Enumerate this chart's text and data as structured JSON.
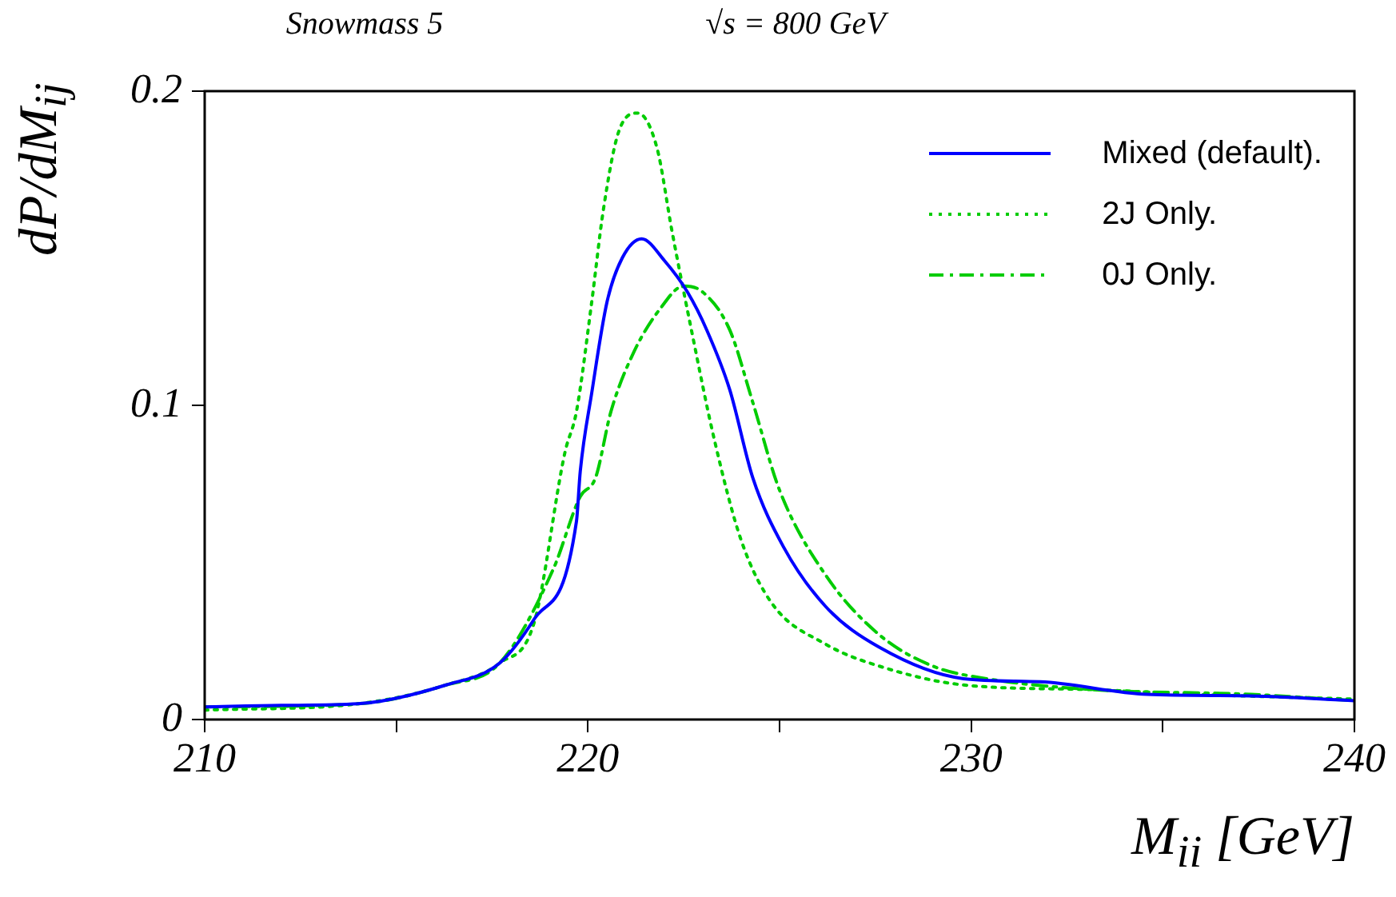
{
  "chart_data": {
    "type": "line",
    "xlabel": "M$_{ii}$ [GeV]",
    "ylabel": "dP/dM$_{ij}$",
    "annotations": [
      "Snowmass 5",
      "√s = 800 GeV"
    ],
    "xlim": [
      210,
      240
    ],
    "xticks": [
      210,
      {
        "value": 215,
        "label": null
      },
      220,
      {
        "value": 225,
        "label": null
      },
      230,
      {
        "value": 235,
        "label": null
      },
      240
    ],
    "ylim": [
      0,
      0.2
    ],
    "yticks": [
      0,
      0.1,
      0.2
    ],
    "grid": false,
    "legend": "top right",
    "marker": "none",
    "series": [
      {
        "name": "Mixed (default).",
        "color": "#0000ff",
        "line_style": "solid",
        "x": [
          210,
          212,
          214,
          216.3,
          217.7,
          218.6,
          219.7,
          219.8,
          220.1,
          220.5,
          220.9,
          221.4,
          222.0,
          222.6,
          223.1,
          223.7,
          224.3,
          225.1,
          226.2,
          227.6,
          229.8,
          231.8,
          234.6,
          237.3,
          240
        ],
        "values": [
          0.004,
          0.0045,
          0.005,
          0.011,
          0.018,
          0.032,
          0.063,
          0.079,
          0.104,
          0.133,
          0.147,
          0.153,
          0.146,
          0.136,
          0.124,
          0.105,
          0.077,
          0.055,
          0.036,
          0.023,
          0.013,
          0.012,
          0.008,
          0.0075,
          0.006
        ]
      },
      {
        "name": "2J Only.",
        "color": "#00cc00",
        "line_style": "dotted",
        "x": [
          210,
          214,
          216.3,
          217.7,
          218.6,
          219.4,
          219.7,
          220.1,
          220.4,
          220.8,
          221.3,
          221.8,
          222.2,
          222.7,
          223.3,
          224.0,
          224.8,
          226.2,
          227.6,
          229.8,
          233.2,
          235.9,
          240
        ],
        "values": [
          0.003,
          0.005,
          0.011,
          0.018,
          0.031,
          0.085,
          0.098,
          0.133,
          0.162,
          0.187,
          0.193,
          0.182,
          0.155,
          0.124,
          0.089,
          0.057,
          0.037,
          0.024,
          0.017,
          0.011,
          0.0095,
          0.008,
          0.0065
        ]
      },
      {
        "name": "0J Only.",
        "color": "#00cc00",
        "line_style": "dashed",
        "x": [
          210,
          214,
          216.3,
          217.7,
          219.1,
          219.8,
          220.2,
          220.6,
          221.2,
          221.9,
          222.5,
          223.0,
          223.7,
          224.3,
          225.0,
          226.2,
          227.6,
          229.0,
          230.4,
          233.2,
          237.3,
          240
        ],
        "values": [
          0.004,
          0.005,
          0.011,
          0.018,
          0.048,
          0.071,
          0.077,
          0.098,
          0.117,
          0.131,
          0.138,
          0.136,
          0.124,
          0.101,
          0.073,
          0.046,
          0.027,
          0.017,
          0.013,
          0.0095,
          0.008,
          0.006
        ]
      }
    ]
  }
}
